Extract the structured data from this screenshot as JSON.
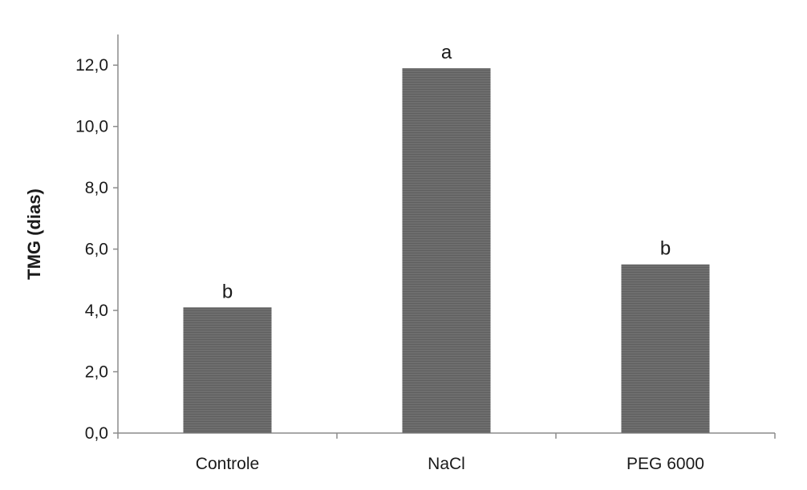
{
  "chart_data": {
    "type": "bar",
    "title": "",
    "xlabel": "",
    "ylabel": "TMG (dias)",
    "categories": [
      "Controle",
      "NaCl",
      "PEG 6000"
    ],
    "values": [
      4.1,
      11.9,
      5.5
    ],
    "significance_letters": [
      "b",
      "a",
      "b"
    ],
    "ylim": [
      0,
      13
    ],
    "yticks": [
      0,
      2,
      4,
      6,
      8,
      10,
      12
    ],
    "ytick_labels": [
      "0,0",
      "2,0",
      "4,0",
      "6,0",
      "8,0",
      "10,0",
      "12,0"
    ],
    "grid": false,
    "legend": "none",
    "bar_color": "#6b6b6b",
    "axis_color": "#8c8c8c"
  }
}
